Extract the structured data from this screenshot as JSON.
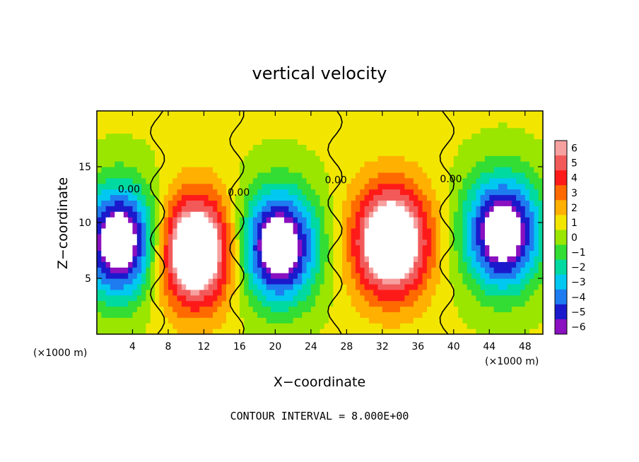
{
  "chart_data": {
    "type": "heatmap",
    "title": "vertical velocity",
    "xlabel": "X−coordinate",
    "ylabel": "Z−coordinate",
    "x_unit_left": "(×1000 m)",
    "x_unit_right": "(×1000 m)",
    "footer": "CONTOUR INTERVAL = 8.000E+00",
    "xlim": [
      0,
      50
    ],
    "ylim": [
      0,
      20
    ],
    "x_ticks": [
      4,
      8,
      12,
      16,
      20,
      24,
      28,
      32,
      36,
      40,
      44,
      48
    ],
    "y_ticks": [
      5,
      10,
      15
    ],
    "colorbar": {
      "levels": [
        6,
        5,
        4,
        3,
        2,
        1,
        0,
        -1,
        -2,
        -3,
        -4,
        -5,
        -6
      ],
      "colors": [
        "#f7a0a0",
        "#f25a5a",
        "#ff1a1a",
        "#ff6a00",
        "#ffb000",
        "#f2e600",
        "#9ae600",
        "#33dd33",
        "#00d9a0",
        "#00c8f0",
        "#1e7cf0",
        "#1a1acc",
        "#8a10c0"
      ],
      "above_max_color": "#ffffff",
      "below_min_color": "#ffffff"
    },
    "contour_labels": [
      {
        "text": "0.00",
        "x": 3.6,
        "z": 12.7
      },
      {
        "text": "0.00",
        "x": 15.9,
        "z": 12.4
      },
      {
        "text": "0.00",
        "x": 26.8,
        "z": 13.5
      },
      {
        "text": "0.00",
        "x": 39.7,
        "z": 13.6
      }
    ],
    "cells": [
      {
        "x": 2.6,
        "z": 8.5,
        "w": -7
      },
      {
        "x": 11.0,
        "z": 7.5,
        "w": 7
      },
      {
        "x": 20.4,
        "z": 8.0,
        "w": -7
      },
      {
        "x": 33.0,
        "z": 8.5,
        "w": 7
      },
      {
        "x": 45.5,
        "z": 9.5,
        "w": -7
      }
    ]
  }
}
